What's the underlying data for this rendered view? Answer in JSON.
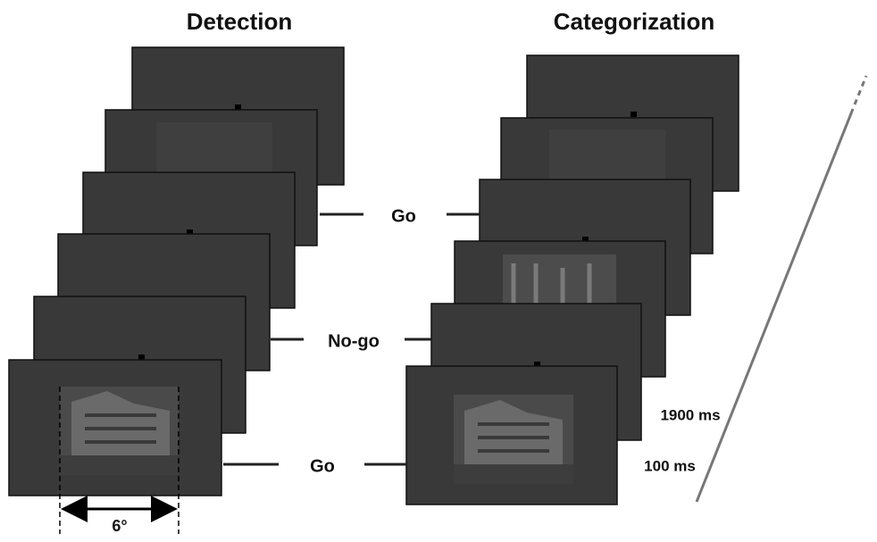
{
  "titles": {
    "detection": "Detection",
    "categorization": "Categorization"
  },
  "responses": [
    "Go",
    "No-go",
    "Go"
  ],
  "timing": {
    "long": "1900 ms",
    "short": "100 ms"
  },
  "visual_angle": "6°"
}
